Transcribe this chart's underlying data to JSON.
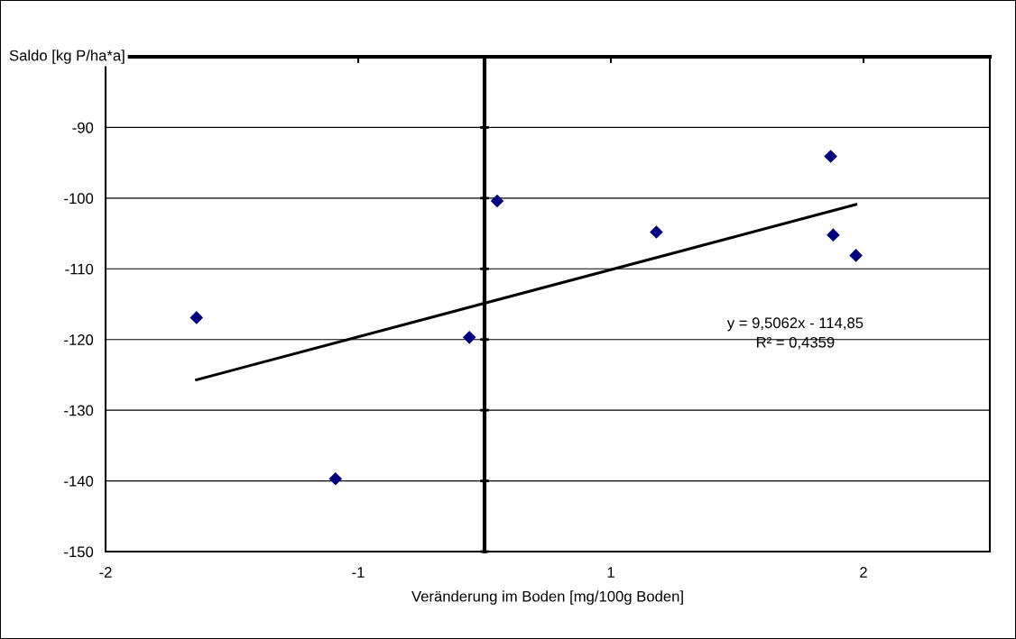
{
  "chart_data": {
    "type": "scatter",
    "xlabel": "Veränderung im Boden [mg/100g Boden]",
    "ylabel": "Saldo [kg P/ha*a]",
    "xlim": [
      -1.5,
      2.0
    ],
    "xticks": [
      {
        "value": -1.5,
        "label": "-2"
      },
      {
        "value": -0.5,
        "label": "-1"
      },
      {
        "value": 0.5,
        "label": "1"
      },
      {
        "value": 1.5,
        "label": "2"
      }
    ],
    "ylim": [
      -150,
      -80
    ],
    "yticks": [
      -150,
      -140,
      -130,
      -120,
      -110,
      -100,
      -90
    ],
    "grid": "y",
    "series": [
      {
        "color": "#000080",
        "marker": "diamond",
        "x": [
          -1.14,
          -0.59,
          -0.06,
          0.05,
          0.68,
          1.37,
          1.38,
          1.47
        ],
        "values": [
          -116.9,
          -139.7,
          -119.7,
          -100.4,
          -104.8,
          -94.1,
          -105.2,
          -108.1
        ]
      },
      {
        "type": "line",
        "color": "#000000",
        "x": [
          -1.14,
          1.47
        ],
        "values": [
          -125.7,
          -100.9
        ]
      }
    ],
    "annotations": [
      "y = 9,5062x - 114,85\nR² = 0,4359"
    ]
  }
}
